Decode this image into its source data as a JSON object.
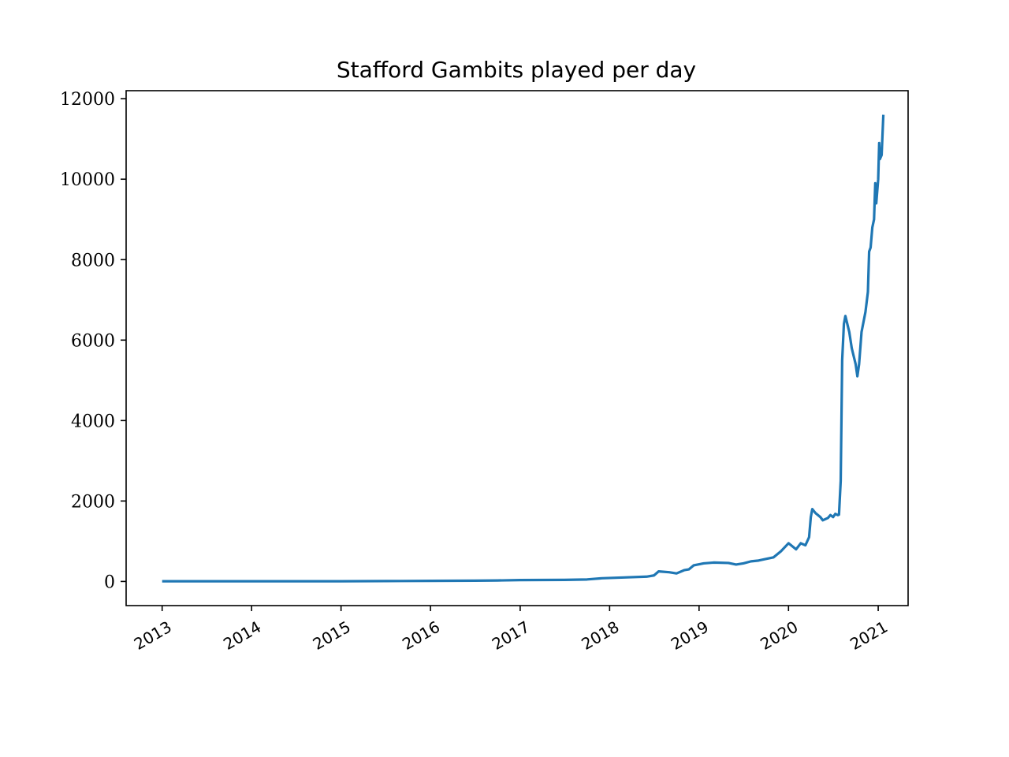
{
  "chart_data": {
    "type": "line",
    "title": "Stafford Gambits played per day",
    "xlabel": "",
    "ylabel": "",
    "xlim": [
      "2012-08-07",
      "2021-05-03"
    ],
    "ylim": [
      -600,
      12200
    ],
    "x_ticks": [
      {
        "label": "2013",
        "date": "2013-01-01"
      },
      {
        "label": "2014",
        "date": "2014-01-01"
      },
      {
        "label": "2015",
        "date": "2015-01-01"
      },
      {
        "label": "2016",
        "date": "2016-01-01"
      },
      {
        "label": "2017",
        "date": "2017-01-01"
      },
      {
        "label": "2018",
        "date": "2018-01-01"
      },
      {
        "label": "2019",
        "date": "2019-01-01"
      },
      {
        "label": "2020",
        "date": "2020-01-01"
      },
      {
        "label": "2021",
        "date": "2021-01-01"
      }
    ],
    "y_ticks": [
      {
        "label": "0",
        "value": 0
      },
      {
        "label": "2000",
        "value": 2000
      },
      {
        "label": "4000",
        "value": 4000
      },
      {
        "label": "6000",
        "value": 6000
      },
      {
        "label": "8000",
        "value": 8000
      },
      {
        "label": "10000",
        "value": 10000
      },
      {
        "label": "12000",
        "value": 12000
      }
    ],
    "grid": false,
    "legend": "none",
    "series": [
      {
        "color": "#1f77b4",
        "points": [
          [
            "2013-01-01",
            5
          ],
          [
            "2014-01-01",
            5
          ],
          [
            "2015-01-01",
            5
          ],
          [
            "2015-07-01",
            10
          ],
          [
            "2016-01-01",
            15
          ],
          [
            "2016-07-01",
            20
          ],
          [
            "2016-10-01",
            25
          ],
          [
            "2017-01-01",
            35
          ],
          [
            "2017-07-01",
            40
          ],
          [
            "2017-10-01",
            50
          ],
          [
            "2017-12-01",
            80
          ],
          [
            "2018-03-01",
            100
          ],
          [
            "2018-06-01",
            120
          ],
          [
            "2018-07-01",
            150
          ],
          [
            "2018-07-20",
            250
          ],
          [
            "2018-09-01",
            230
          ],
          [
            "2018-10-01",
            200
          ],
          [
            "2018-11-01",
            280
          ],
          [
            "2018-11-20",
            300
          ],
          [
            "2018-12-10",
            400
          ],
          [
            "2019-01-20",
            450
          ],
          [
            "2019-03-01",
            470
          ],
          [
            "2019-05-01",
            460
          ],
          [
            "2019-06-01",
            420
          ],
          [
            "2019-07-01",
            450
          ],
          [
            "2019-08-01",
            500
          ],
          [
            "2019-09-01",
            520
          ],
          [
            "2019-10-01",
            560
          ],
          [
            "2019-11-01",
            600
          ],
          [
            "2019-12-01",
            750
          ],
          [
            "2020-01-01",
            950
          ],
          [
            "2020-02-01",
            800
          ],
          [
            "2020-02-20",
            950
          ],
          [
            "2020-03-10",
            900
          ],
          [
            "2020-03-25",
            1100
          ],
          [
            "2020-04-01",
            1600
          ],
          [
            "2020-04-07",
            1800
          ],
          [
            "2020-04-20",
            1700
          ],
          [
            "2020-05-10",
            1600
          ],
          [
            "2020-05-20",
            1520
          ],
          [
            "2020-06-10",
            1580
          ],
          [
            "2020-06-20",
            1650
          ],
          [
            "2020-07-01",
            1600
          ],
          [
            "2020-07-10",
            1680
          ],
          [
            "2020-07-20",
            1650
          ],
          [
            "2020-07-25",
            1660
          ],
          [
            "2020-08-01",
            2500
          ],
          [
            "2020-08-07",
            5500
          ],
          [
            "2020-08-14",
            6400
          ],
          [
            "2020-08-20",
            6600
          ],
          [
            "2020-09-05",
            6200
          ],
          [
            "2020-09-15",
            5800
          ],
          [
            "2020-10-01",
            5400
          ],
          [
            "2020-10-08",
            5100
          ],
          [
            "2020-10-15",
            5400
          ],
          [
            "2020-10-25",
            6200
          ],
          [
            "2020-11-10",
            6700
          ],
          [
            "2020-11-20",
            7200
          ],
          [
            "2020-11-25",
            8200
          ],
          [
            "2020-12-01",
            8300
          ],
          [
            "2020-12-08",
            8800
          ],
          [
            "2020-12-15",
            9000
          ],
          [
            "2020-12-20",
            9900
          ],
          [
            "2020-12-24",
            9400
          ],
          [
            "2021-01-01",
            10000
          ],
          [
            "2021-01-05",
            10900
          ],
          [
            "2021-01-08",
            10500
          ],
          [
            "2021-01-15",
            10600
          ],
          [
            "2021-01-22",
            11600
          ]
        ]
      }
    ]
  }
}
